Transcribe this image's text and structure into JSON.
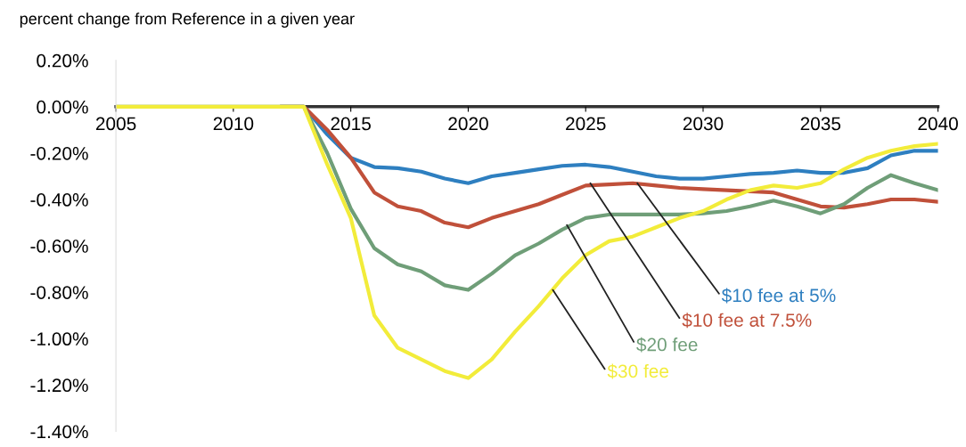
{
  "chart_data": {
    "type": "line",
    "ylabel": "percent change from Reference in a given year",
    "x": [
      2005,
      2006,
      2007,
      2008,
      2009,
      2010,
      2011,
      2012,
      2013,
      2014,
      2015,
      2016,
      2017,
      2018,
      2019,
      2020,
      2021,
      2022,
      2023,
      2024,
      2025,
      2026,
      2027,
      2028,
      2029,
      2030,
      2031,
      2032,
      2033,
      2034,
      2035,
      2036,
      2037,
      2038,
      2039,
      2040
    ],
    "series": [
      {
        "color": "#2e7fc0",
        "values": [
          null,
          null,
          null,
          null,
          null,
          null,
          null,
          0,
          0,
          -0.12,
          -0.22,
          -0.26,
          -0.265,
          -0.28,
          -0.31,
          -0.33,
          -0.3,
          -0.285,
          -0.27,
          -0.255,
          -0.25,
          -0.26,
          -0.28,
          -0.3,
          -0.31,
          -0.31,
          -0.3,
          -0.29,
          -0.285,
          -0.275,
          -0.285,
          -0.285,
          -0.265,
          -0.21,
          -0.19,
          -0.19
        ]
      },
      {
        "color": "#c0503a",
        "values": [
          null,
          null,
          null,
          null,
          null,
          null,
          null,
          0,
          0,
          -0.1,
          -0.22,
          -0.37,
          -0.43,
          -0.45,
          -0.5,
          -0.52,
          -0.48,
          -0.45,
          -0.42,
          -0.38,
          -0.34,
          -0.335,
          -0.33,
          -0.34,
          -0.35,
          -0.355,
          -0.36,
          -0.365,
          -0.37,
          -0.4,
          -0.43,
          -0.435,
          -0.42,
          -0.4,
          -0.4,
          -0.41
        ]
      },
      {
        "color": "#6f9e78",
        "values": [
          0,
          0,
          0,
          0,
          0,
          0,
          0,
          0,
          0,
          -0.2,
          -0.44,
          -0.61,
          -0.68,
          -0.71,
          -0.77,
          -0.79,
          -0.72,
          -0.64,
          -0.59,
          -0.53,
          -0.48,
          -0.465,
          -0.465,
          -0.465,
          -0.465,
          -0.46,
          -0.45,
          -0.43,
          -0.405,
          -0.43,
          -0.46,
          -0.42,
          -0.35,
          -0.295,
          -0.33,
          -0.36
        ]
      },
      {
        "color": "#f2ec3a",
        "values": [
          0,
          0,
          0,
          0,
          0,
          0,
          0,
          0,
          0,
          -0.25,
          -0.48,
          -0.9,
          -1.04,
          -1.09,
          -1.14,
          -1.17,
          -1.09,
          -0.97,
          -0.86,
          -0.74,
          -0.64,
          -0.58,
          -0.56,
          -0.52,
          -0.48,
          -0.45,
          -0.4,
          -0.36,
          -0.34,
          -0.35,
          -0.33,
          -0.27,
          -0.22,
          -0.19,
          -0.17,
          -0.16
        ]
      }
    ],
    "annotations": [
      {
        "text": "$10 fee at 5%",
        "x": 2027.2,
        "y": -0.33
      },
      {
        "text": "$10 fee at 7.5%",
        "x": 2025.2,
        "y": -0.33
      },
      {
        "text": "$20 fee",
        "x": 2024.2,
        "y": -0.51
      },
      {
        "text": "$30 fee",
        "x": 2023.6,
        "y": -0.79
      }
    ],
    "xlim": [
      2005,
      2040
    ],
    "xticks": [
      2005,
      2010,
      2015,
      2020,
      2025,
      2030,
      2035,
      2040
    ],
    "ylim": [
      -1.4,
      0.2
    ],
    "yticks": [
      {
        "value": 0.2,
        "label": "0.20%"
      },
      {
        "value": 0,
        "label": "0.00%"
      },
      {
        "value": -0.2,
        "label": "-0.20%"
      },
      {
        "value": -0.4,
        "label": "-0.40%"
      },
      {
        "value": -0.6,
        "label": "-0.60%"
      },
      {
        "value": -0.8,
        "label": "-0.80%"
      },
      {
        "value": -1.0,
        "label": "-1.00%"
      },
      {
        "value": -1.2,
        "label": "-1.20%"
      },
      {
        "value": -1.4,
        "label": "-1.40%"
      }
    ],
    "grid": false,
    "legend": false
  }
}
